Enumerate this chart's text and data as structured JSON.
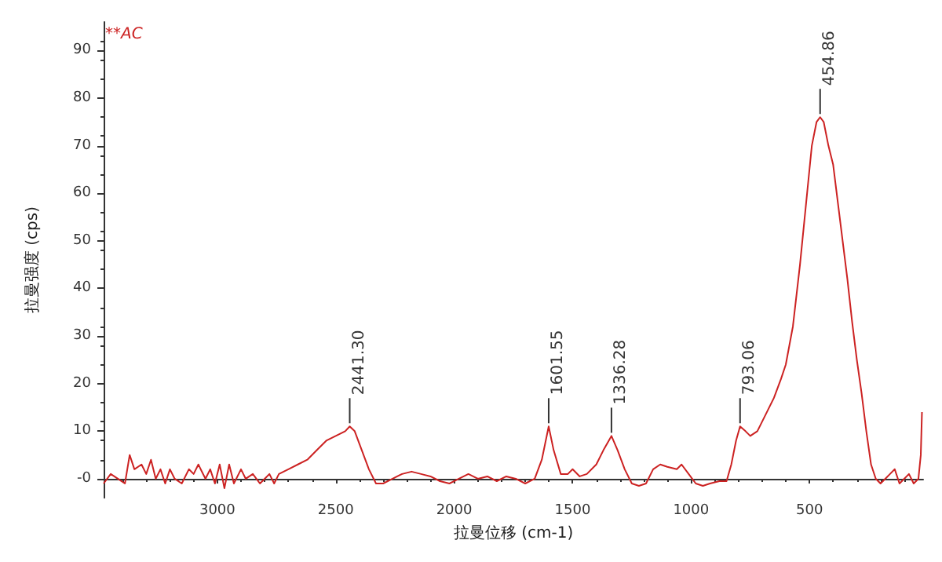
{
  "chart_data": {
    "type": "line",
    "title": "**AC",
    "xlabel": "拉曼位移 (cm-1)",
    "ylabel": "拉曼强度 (cps)",
    "xlim": [
      3480,
      20
    ],
    "xticks": [
      3000,
      2500,
      2000,
      1500,
      1000,
      500
    ],
    "ylim": [
      -4,
      96
    ],
    "yticks": [
      {
        "value": 0,
        "label": "-0"
      },
      10,
      20,
      30,
      40,
      50,
      60,
      70,
      80,
      90
    ],
    "marker": "none",
    "line_style": "solid",
    "annotations": [
      {
        "text": "2441.30",
        "x": 2441,
        "y": 11
      },
      {
        "text": "1601.55",
        "x": 1601,
        "y": 11
      },
      {
        "text": "1336.28",
        "x": 1336,
        "y": 9
      },
      {
        "text": "793.06",
        "x": 793,
        "y": 11
      },
      {
        "text": "454.86",
        "x": 455,
        "y": 76
      }
    ],
    "series": [
      {
        "color": "#cc2222",
        "x": [
          3480,
          3450,
          3420,
          3390,
          3370,
          3350,
          3320,
          3300,
          3280,
          3260,
          3240,
          3220,
          3200,
          3180,
          3150,
          3120,
          3100,
          3080,
          3050,
          3030,
          3010,
          2990,
          2970,
          2950,
          2930,
          2900,
          2880,
          2850,
          2820,
          2800,
          2780,
          2760,
          2740,
          2700,
          2660,
          2620,
          2580,
          2540,
          2500,
          2460,
          2441,
          2420,
          2390,
          2360,
          2330,
          2300,
          2260,
          2220,
          2180,
          2140,
          2100,
          2060,
          2020,
          1980,
          1940,
          1900,
          1860,
          1820,
          1780,
          1740,
          1700,
          1660,
          1630,
          1601,
          1580,
          1550,
          1520,
          1500,
          1470,
          1440,
          1400,
          1370,
          1336,
          1310,
          1280,
          1250,
          1220,
          1190,
          1160,
          1130,
          1100,
          1060,
          1040,
          1010,
          980,
          950,
          920,
          880,
          850,
          830,
          810,
          793,
          770,
          750,
          720,
          680,
          650,
          620,
          600,
          570,
          540,
          510,
          490,
          470,
          455,
          440,
          420,
          400,
          380,
          360,
          340,
          320,
          300,
          280,
          260,
          240,
          220,
          200,
          180,
          160,
          140,
          120,
          100,
          80,
          60,
          40,
          30,
          25
        ],
        "values": [
          -1,
          1,
          0,
          -1,
          5,
          2,
          3,
          1,
          4,
          0,
          2,
          -1,
          2,
          0,
          -1,
          2,
          1,
          3,
          0,
          2,
          -1,
          3,
          -2,
          3,
          -1,
          2,
          0,
          1,
          -1,
          0,
          1,
          -1,
          1,
          2,
          3,
          4,
          6,
          8,
          9,
          10,
          11,
          10,
          6,
          2,
          -1,
          -1,
          0,
          1,
          1.5,
          1,
          0.5,
          -0.5,
          -1,
          0,
          1,
          0,
          0.5,
          -0.5,
          0.5,
          0,
          -1,
          0,
          4,
          11,
          6,
          1,
          1,
          2,
          0.5,
          1,
          3,
          6,
          9,
          6,
          2,
          -1,
          -1.5,
          -1,
          2,
          3,
          2.5,
          2,
          3,
          1,
          -1,
          -1.5,
          -1,
          -0.5,
          -0.5,
          3,
          8,
          11,
          10,
          9,
          10,
          14,
          17,
          21,
          24,
          32,
          45,
          60,
          70,
          75,
          76,
          75,
          70,
          66,
          58,
          50,
          42,
          33,
          25,
          18,
          10,
          3,
          0,
          -1,
          0,
          1,
          2,
          -1,
          0,
          1,
          -1,
          0,
          5,
          14
        ]
      }
    ]
  }
}
